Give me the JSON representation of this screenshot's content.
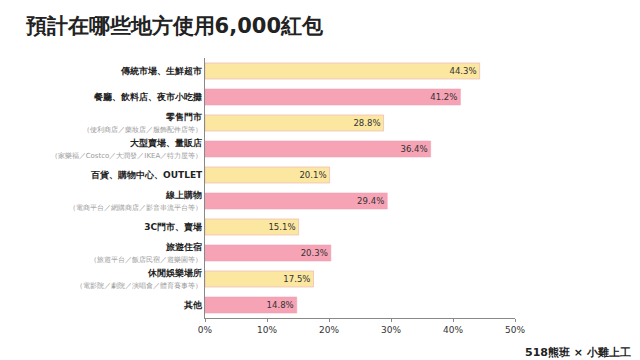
{
  "chart_data": {
    "type": "bar",
    "orientation": "horizontal",
    "title": "預計在哪些地方使用6,000紅包",
    "categories": [
      "傳統市場、生鮮超市",
      "餐廳、飲料店、夜市小吃攤",
      "零售門市",
      "大型賣場、量販店",
      "百貨、購物中心、OUTLET",
      "線上購物",
      "3C門市、賣場",
      "旅遊住宿",
      "休閒娛樂場所",
      "其他"
    ],
    "category_notes": [
      null,
      null,
      "（便利商店／藥妝店／服飾配件店等）",
      "（家樂福／Costco／大潤發／IKEA／特力屋等）",
      null,
      "（電商平台／網購商店／影音串流平台等）",
      null,
      "（旅遊平台／飯店民宿／遊樂園等）",
      "（電影院／劇院／演唱會／體育賽事等）",
      null
    ],
    "values": [
      44.3,
      41.2,
      28.8,
      36.4,
      20.1,
      29.4,
      15.1,
      20.3,
      17.5,
      14.8
    ],
    "value_labels": [
      "44.3%",
      "41.2%",
      "28.8%",
      "36.4%",
      "20.1%",
      "29.4%",
      "15.1%",
      "20.3%",
      "17.5%",
      "14.8%"
    ],
    "data_labels": true,
    "colors": [
      "#fbe7a0",
      "#f6a3b5",
      "#fbe7a0",
      "#f6a3b5",
      "#fbe7a0",
      "#f6a3b5",
      "#fbe7a0",
      "#f6a3b5",
      "#fbe7a0",
      "#f6a3b5"
    ],
    "xlim": [
      0,
      50
    ],
    "xticks": [
      {
        "value": 0,
        "label": "0%"
      },
      {
        "value": 10,
        "label": "10%"
      },
      {
        "value": 20,
        "label": "20%"
      },
      {
        "value": 30,
        "label": "30%"
      },
      {
        "value": 40,
        "label": "40%"
      },
      {
        "value": 50,
        "label": "50%"
      }
    ],
    "grid": false,
    "annotations": [
      {
        "text": "518熊班 × 小雞上工"
      }
    ]
  }
}
